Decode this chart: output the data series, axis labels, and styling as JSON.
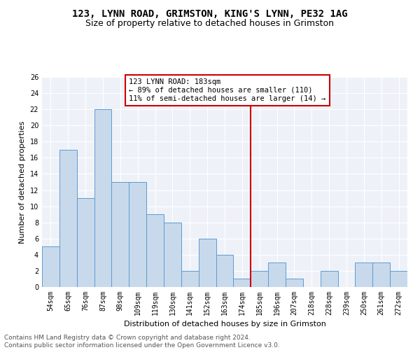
{
  "title": "123, LYNN ROAD, GRIMSTON, KING'S LYNN, PE32 1AG",
  "subtitle": "Size of property relative to detached houses in Grimston",
  "xlabel": "Distribution of detached houses by size in Grimston",
  "ylabel": "Number of detached properties",
  "footnote": "Contains HM Land Registry data © Crown copyright and database right 2024.\nContains public sector information licensed under the Open Government Licence v3.0.",
  "bin_labels": [
    "54sqm",
    "65sqm",
    "76sqm",
    "87sqm",
    "98sqm",
    "109sqm",
    "119sqm",
    "130sqm",
    "141sqm",
    "152sqm",
    "163sqm",
    "174sqm",
    "185sqm",
    "196sqm",
    "207sqm",
    "218sqm",
    "228sqm",
    "239sqm",
    "250sqm",
    "261sqm",
    "272sqm"
  ],
  "bar_values": [
    5,
    17,
    11,
    22,
    13,
    13,
    9,
    8,
    2,
    6,
    4,
    1,
    2,
    3,
    1,
    0,
    2,
    0,
    3,
    3,
    2
  ],
  "bar_color": "#c8d9eb",
  "bar_edge_color": "#5b9bd5",
  "vline_index": 12,
  "vline_color": "#cc0000",
  "annotation_text": "123 LYNN ROAD: 183sqm\n← 89% of detached houses are smaller (110)\n11% of semi-detached houses are larger (14) →",
  "annotation_box_color": "#cc0000",
  "ylim": [
    0,
    26
  ],
  "yticks": [
    0,
    2,
    4,
    6,
    8,
    10,
    12,
    14,
    16,
    18,
    20,
    22,
    24,
    26
  ],
  "background_color": "#eef2f8",
  "title_fontsize": 10,
  "subtitle_fontsize": 9,
  "axis_label_fontsize": 8,
  "tick_fontsize": 7,
  "annotation_fontsize": 7.5,
  "footnote_fontsize": 6.5
}
